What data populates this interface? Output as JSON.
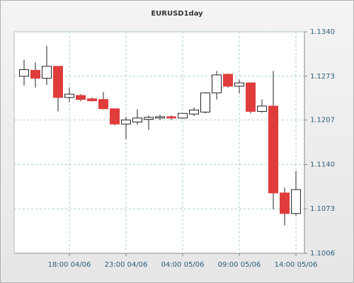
{
  "chart_data": {
    "type": "candlestick",
    "title": "EURUSD1day",
    "categories": [
      null,
      null,
      null,
      null,
      "18:00 04/06",
      null,
      null,
      null,
      null,
      "23:00 04/06",
      null,
      null,
      null,
      null,
      "04:00 05/06",
      null,
      null,
      null,
      null,
      "09:00 05/06",
      null,
      null,
      null,
      null,
      "14:00 05/06"
    ],
    "open": [
      1.1273,
      1.1282,
      1.127,
      1.1288,
      1.1241,
      1.1244,
      1.1239,
      1.1238,
      1.1224,
      1.1201,
      1.1204,
      1.1208,
      1.121,
      1.1212,
      1.121,
      1.1216,
      1.1219,
      1.1248,
      1.1276,
      1.1258,
      1.1263,
      1.122,
      1.1228,
      1.1097,
      1.1066
    ],
    "high": [
      1.1298,
      1.1294,
      1.1319,
      1.1288,
      1.1256,
      1.1246,
      1.1241,
      1.1249,
      1.1224,
      1.1212,
      1.1223,
      1.1214,
      1.1215,
      1.1214,
      1.1217,
      1.1226,
      1.1249,
      1.1281,
      1.1277,
      1.1268,
      1.1264,
      1.1238,
      1.1281,
      1.1105,
      1.113
    ],
    "low": [
      1.1259,
      1.1256,
      1.126,
      1.122,
      1.1234,
      1.1235,
      1.1235,
      1.1223,
      1.1199,
      1.1178,
      1.12,
      1.1192,
      1.1207,
      1.1207,
      1.1209,
      1.1213,
      1.1217,
      1.1238,
      1.1256,
      1.1247,
      1.1217,
      1.1218,
      1.1072,
      1.1048,
      1.1063
    ],
    "close": [
      1.1283,
      1.127,
      1.1288,
      1.1241,
      1.1246,
      1.1238,
      1.1236,
      1.1224,
      1.1201,
      1.1207,
      1.121,
      1.1211,
      1.1212,
      1.121,
      1.1217,
      1.1222,
      1.1248,
      1.1275,
      1.1258,
      1.1263,
      1.122,
      1.1228,
      1.1097,
      1.1066,
      1.1102
    ],
    "up_color": "#ffffff",
    "down_color": "#e03c3c",
    "ylim": [
      1.1006,
      1.134
    ],
    "yticks": [
      {
        "value": 1.1006,
        "label": "1.1006"
      },
      {
        "value": 1.1073,
        "label": "1.1073"
      },
      {
        "value": 1.114,
        "label": "1.1140"
      },
      {
        "value": 1.1207,
        "label": "1.1207"
      },
      {
        "value": 1.1273,
        "label": "1.1273"
      },
      {
        "value": 1.134,
        "label": "1.1340"
      }
    ],
    "grid": true
  }
}
